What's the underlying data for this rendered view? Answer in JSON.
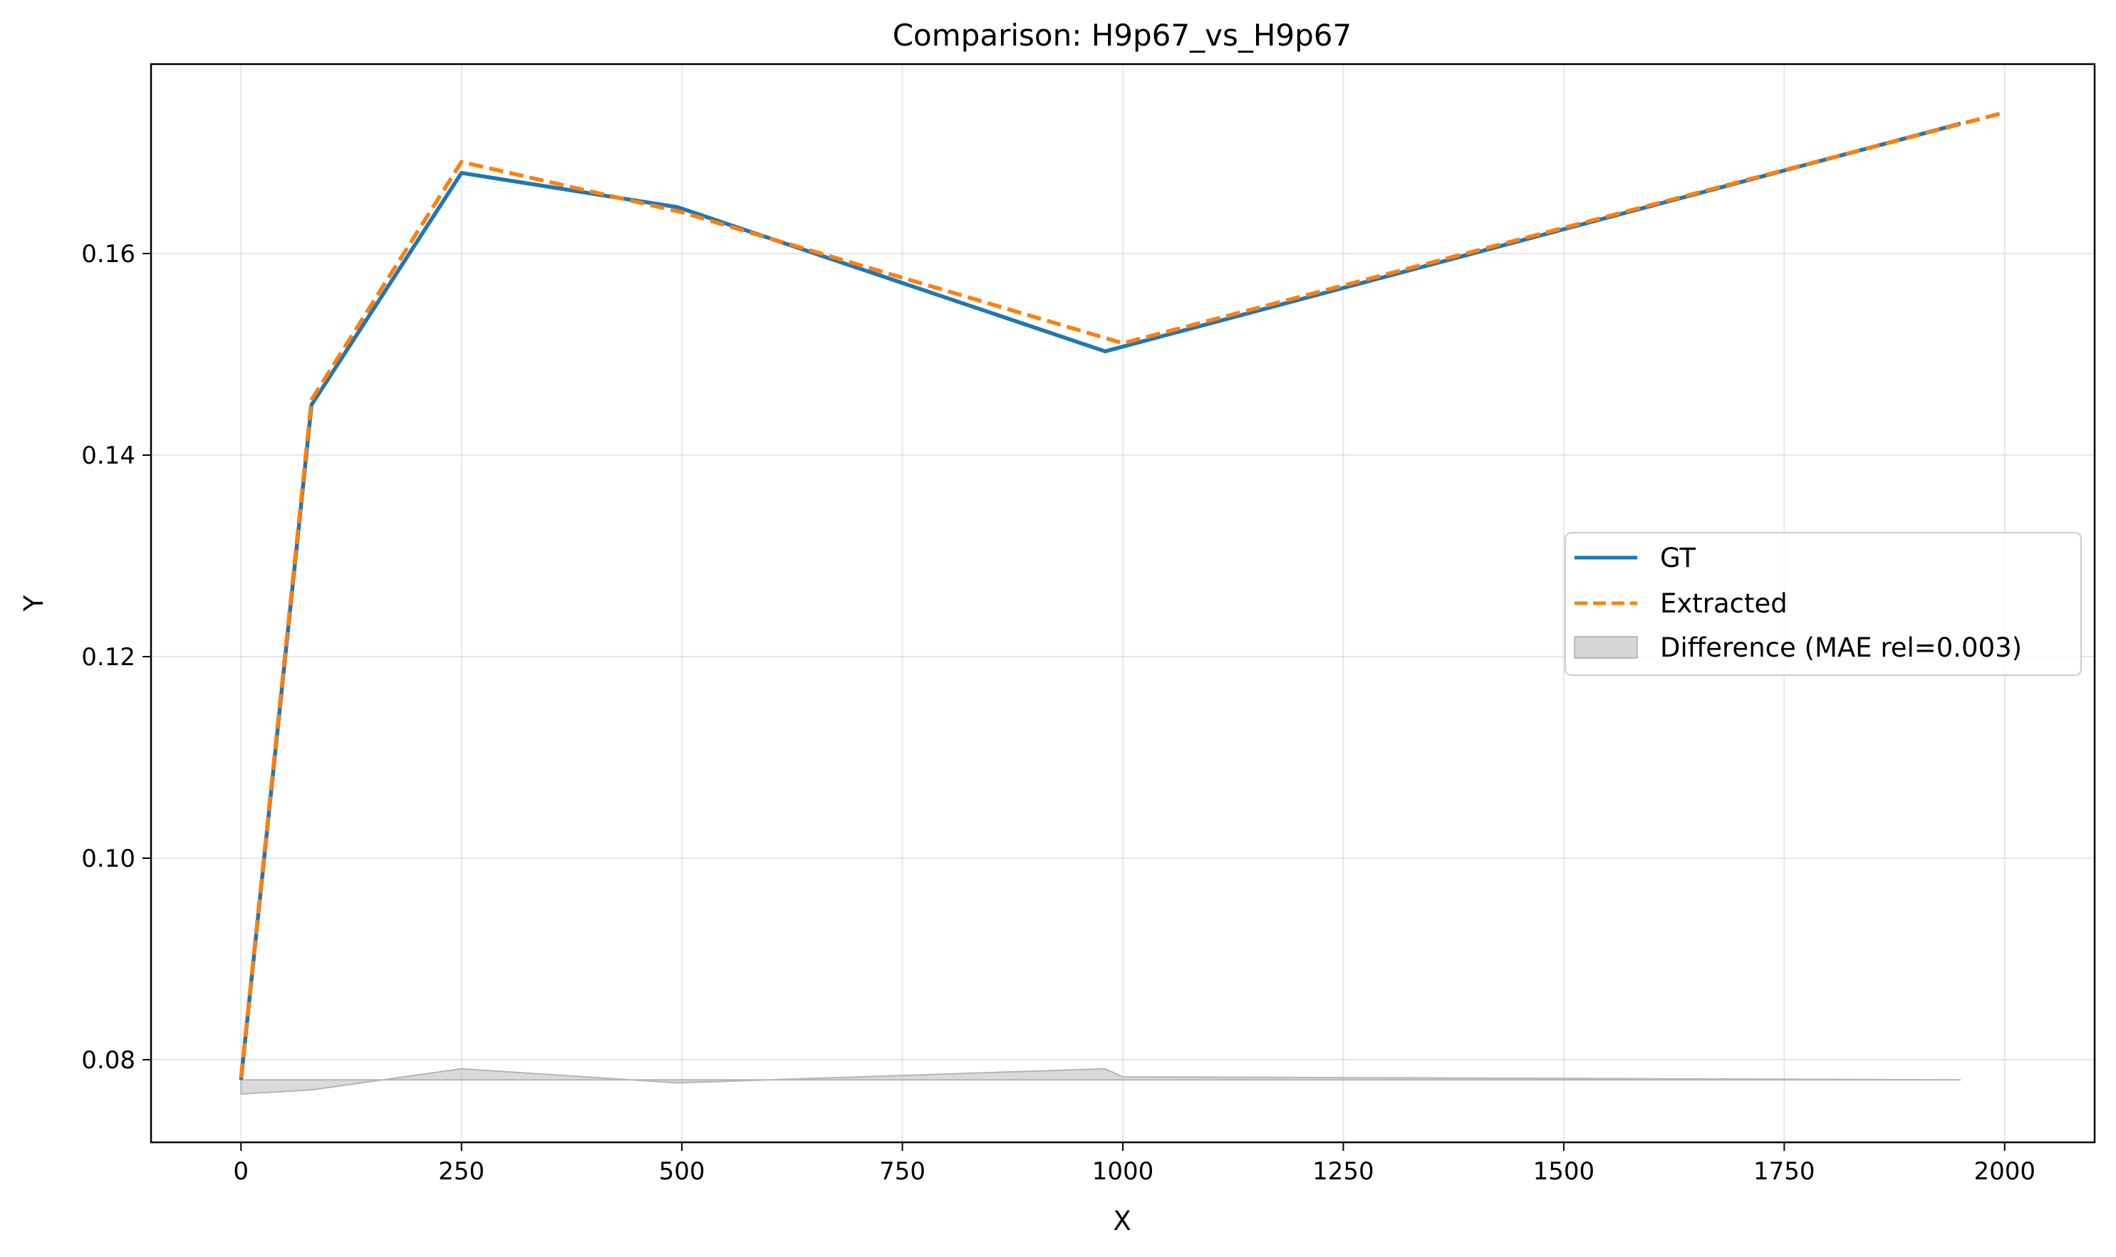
{
  "chart_data": {
    "type": "line",
    "title": "Comparison: H9p67_vs_H9p67",
    "xlabel": "X",
    "ylabel": "Y",
    "xlim": [
      -102,
      2102
    ],
    "ylim": [
      0.0718,
      0.1788
    ],
    "xticks": [
      0,
      250,
      500,
      750,
      1000,
      1250,
      1500,
      1750,
      2000
    ],
    "yticks": [
      0.08,
      0.1,
      0.12,
      0.14,
      0.16
    ],
    "ytick_labels": [
      "0.08",
      "0.10",
      "0.12",
      "0.14",
      "0.16"
    ],
    "grid": true,
    "legend_position": "center-right",
    "series": [
      {
        "name": "GT",
        "color": "#1f77b4",
        "style": "solid",
        "x": [
          0,
          80,
          250,
          495,
          980,
          1950
        ],
        "y": [
          0.078,
          0.145,
          0.168,
          0.1646,
          0.1503,
          0.1729
        ]
      },
      {
        "name": "Extracted",
        "color": "#ff7f0e",
        "style": "dashed",
        "x": [
          0,
          80,
          250,
          500,
          1000,
          2000
        ],
        "y": [
          0.0782,
          0.1455,
          0.1691,
          0.1641,
          0.1511,
          0.174
        ]
      }
    ],
    "difference": {
      "name": "Difference (MAE rel=0.003)",
      "color": "#bbbbbb",
      "baseline": 0.078,
      "x": [
        0,
        80,
        250,
        495,
        980,
        1000,
        1950
      ],
      "y": [
        0.0766,
        0.077,
        0.0791,
        0.0777,
        0.0791,
        0.0783,
        0.078
      ]
    }
  }
}
